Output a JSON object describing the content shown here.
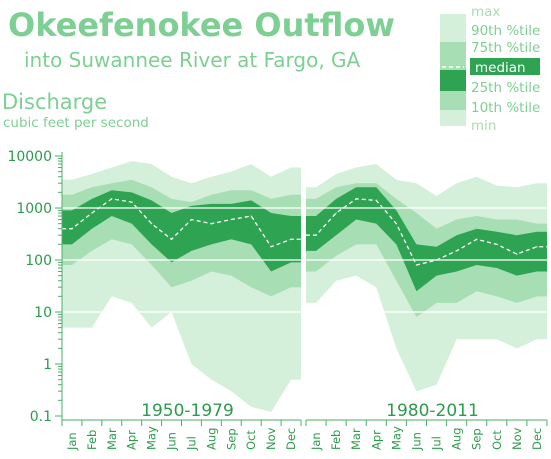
{
  "chart_data": {
    "type": "area",
    "title": "Okeefenokee Outflow",
    "subtitle": "into Suwannee River at Fargo, GA",
    "ylabel": "Discharge",
    "yunit": "cubic feet per second",
    "yscale": "log",
    "ylim": [
      0.1,
      10000
    ],
    "yticks": [
      "10000",
      "1000",
      "100",
      "10",
      "1",
      "0.1"
    ],
    "grid": true,
    "legend_position": "top-right",
    "legend": [
      "max",
      "90th %tile",
      "75th %tile",
      "median",
      "25th %tile",
      "10th %tile",
      "min"
    ],
    "colors": {
      "text": "#7ecf93",
      "axis": "#4caf6a",
      "band_min_max": "#d4efda",
      "band_10_90": "#a8deb3",
      "band_25_75": "#2ea352",
      "median": "#ffffff",
      "grid": "#ffffff"
    },
    "months": [
      "Jan",
      "Feb",
      "Mar",
      "Apr",
      "May",
      "Jun",
      "Jul",
      "Aug",
      "Sep",
      "Oct",
      "Nov",
      "Dec"
    ],
    "panels": [
      {
        "label": "1950-1979",
        "months": [
          "Jan",
          "Feb",
          "Mar",
          "Apr",
          "May",
          "Jun",
          "Jul",
          "Aug",
          "Sep",
          "Oct",
          "Nov",
          "Dec"
        ],
        "series": [
          {
            "name": "max",
            "values": [
              3500,
              4500,
              6000,
              8000,
              7000,
              4000,
              3000,
              4000,
              5000,
              7000,
              4000,
              6000
            ]
          },
          {
            "name": "90th %tile",
            "values": [
              1800,
              2500,
              3000,
              3500,
              2500,
              1500,
              1300,
              1800,
              2200,
              2200,
              1500,
              1800
            ]
          },
          {
            "name": "75th %tile",
            "values": [
              900,
              1500,
              2200,
              2000,
              1400,
              800,
              1100,
              1200,
              1200,
              1400,
              800,
              700
            ]
          },
          {
            "name": "median",
            "values": [
              400,
              800,
              1500,
              1300,
              500,
              250,
              600,
              500,
              600,
              700,
              180,
              250
            ]
          },
          {
            "name": "25th %tile",
            "values": [
              200,
              400,
              700,
              500,
              200,
              90,
              150,
              200,
              250,
              200,
              60,
              90
            ]
          },
          {
            "name": "10th %tile",
            "values": [
              80,
              150,
              250,
              200,
              80,
              30,
              40,
              60,
              50,
              30,
              20,
              30
            ]
          },
          {
            "name": "min",
            "values": [
              5,
              5,
              20,
              15,
              5,
              10,
              1,
              0.5,
              0.3,
              0.15,
              0.12,
              0.5
            ]
          }
        ]
      },
      {
        "label": "1980-2011",
        "months": [
          "Jan",
          "Feb",
          "Mar",
          "Apr",
          "May",
          "Jun",
          "Jul",
          "Aug",
          "Sep",
          "Oct",
          "Nov",
          "Dec"
        ],
        "series": [
          {
            "name": "max",
            "values": [
              2500,
              4500,
              6000,
              7000,
              3500,
              3000,
              1700,
              3000,
              4000,
              2700,
              2500,
              3000
            ]
          },
          {
            "name": "90th %tile",
            "values": [
              1500,
              2500,
              3000,
              3000,
              1500,
              800,
              400,
              600,
              700,
              600,
              600,
              500
            ]
          },
          {
            "name": "75th %tile",
            "values": [
              700,
              1500,
              2500,
              2500,
              900,
              200,
              180,
              300,
              400,
              350,
              300,
              350
            ]
          },
          {
            "name": "median",
            "values": [
              300,
              800,
              1500,
              1400,
              500,
              80,
              100,
              150,
              250,
              200,
              130,
              180
            ]
          },
          {
            "name": "25th %tile",
            "values": [
              150,
              300,
              600,
              500,
              200,
              25,
              50,
              60,
              80,
              70,
              50,
              60
            ]
          },
          {
            "name": "10th %tile",
            "values": [
              60,
              120,
              200,
              200,
              40,
              8,
              15,
              15,
              25,
              20,
              15,
              20
            ]
          },
          {
            "name": "min",
            "values": [
              15,
              40,
              50,
              30,
              2,
              0.3,
              0.4,
              3,
              3,
              3,
              2,
              3
            ]
          }
        ]
      }
    ]
  }
}
